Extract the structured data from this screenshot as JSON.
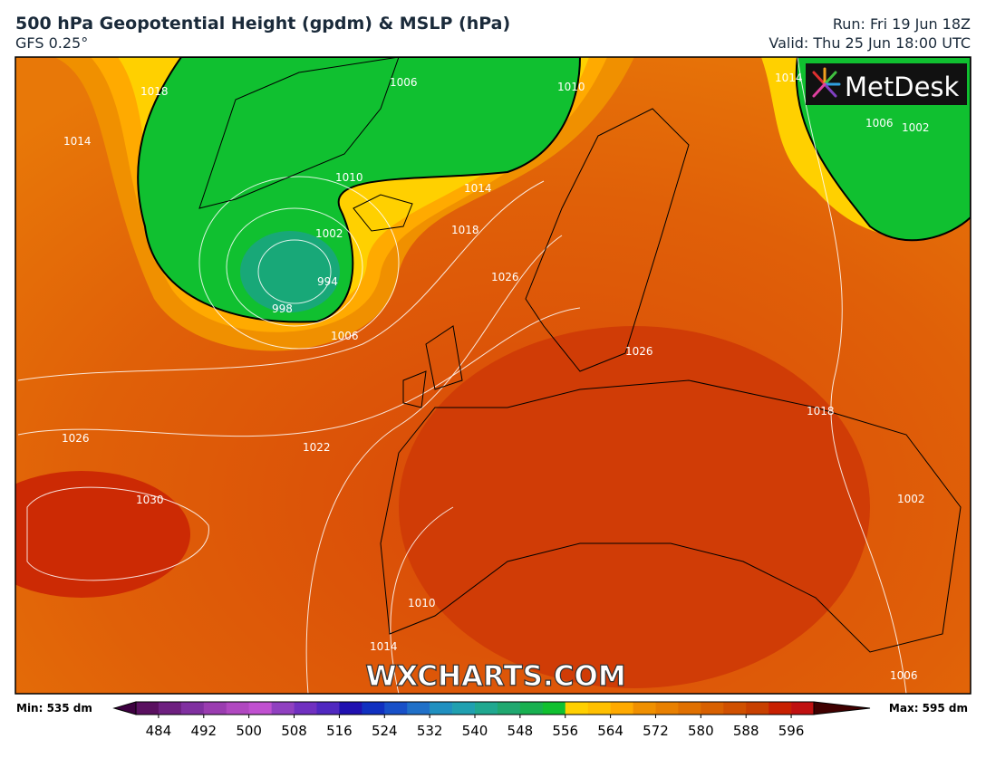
{
  "header": {
    "title": "500 hPa Geopotential Height (gpdm) & MSLP (hPa)",
    "subtitle": "GFS 0.25°",
    "run": "Run: Fri 19 Jun 18Z",
    "valid": "Valid: Thu 25 Jun 18:00 UTC"
  },
  "logo": "MetDesk",
  "watermark": "WXCHARTS.COM",
  "isobar_labels": [
    "1018",
    "1014",
    "1006",
    "1010",
    "1014",
    "1010",
    "1002",
    "994",
    "998",
    "1006",
    "1018",
    "1026",
    "1026",
    "1026",
    "1022",
    "1030",
    "1010",
    "1014",
    "1018",
    "1014",
    "1006",
    "1002",
    "1002",
    "1006"
  ],
  "colorbar": {
    "min_label": "Min: 535 dm",
    "max_label": "Max: 595 dm",
    "range": [
      480,
      600
    ],
    "colors": [
      "#5a1060",
      "#6e2080",
      "#8030a0",
      "#9a3cb0",
      "#b048c0",
      "#c050d0",
      "#9040c0",
      "#7030c0",
      "#5028c0",
      "#2010b0",
      "#1030c0",
      "#1850c8",
      "#2070c8",
      "#2090c0",
      "#20a0b0",
      "#20a890",
      "#20a870",
      "#18b050",
      "#10c030",
      "#ffd000",
      "#ffc000",
      "#ffaa00",
      "#f09000",
      "#e88000",
      "#e07000",
      "#d86000",
      "#d05000",
      "#c84000",
      "#c82000",
      "#c01010"
    ],
    "ticks": [
      484,
      492,
      500,
      508,
      516,
      524,
      532,
      540,
      548,
      556,
      564,
      572,
      580,
      588,
      596
    ]
  }
}
